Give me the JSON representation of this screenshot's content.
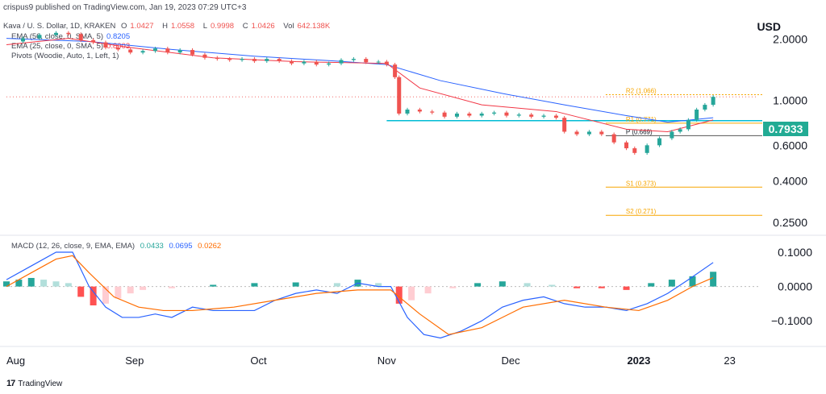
{
  "header": {
    "publisher": "crispus9 published on TradingView.com, Jan 19, 2023 07:29 UTC+3"
  },
  "legend": {
    "symbol": "Kava / U. S. Dollar, 1D, KRAKEN",
    "o_label": "O",
    "o_value": "1.0427",
    "h_label": "H",
    "h_value": "1.0558",
    "l_label": "L",
    "l_value": "0.9998",
    "c_label": "C",
    "c_value": "1.0426",
    "vol_label": "Vol",
    "vol_value": "642.138K",
    "ema50": "EMA (50, close, 0, SMA, 5)",
    "ema50_value": "0.8205",
    "ema25": "EMA (25, close, 0, SMA, 5)",
    "ema25_value": "0.8003",
    "pivots": "Pivots (Woodie, Auto, 1, Left, 1)",
    "macd": "MACD (12, 26, close, 9, EMA, EMA)",
    "macd_hist": "0.0433",
    "macd_line": "0.0695",
    "macd_signal": "0.0262"
  },
  "axis": {
    "currency": "USD",
    "last_price": "0.7933"
  },
  "footer": {
    "brand": "TradingView"
  },
  "colors": {
    "up": "#26a69a",
    "down": "#ef5350",
    "ema50": "#2962ff",
    "ema25": "#f23645",
    "macd": "#2962ff",
    "signal": "#ff6d00",
    "hist_up": "#26a69a",
    "hist_up_light": "#b2dfdb",
    "hist_down": "#ff5252",
    "hist_down_light": "#ffcdd2",
    "pivot": "#f7a600",
    "hline": "#00bcd4"
  },
  "chart_data": [
    {
      "type": "candlestick",
      "title": "Kava / U. S. Dollar, 1D, KRAKEN",
      "scale": "log",
      "y_ticks": [
        2.0,
        1.0,
        0.6,
        0.4,
        0.25
      ],
      "y_tick_labels": [
        "2.0000",
        "1.0000",
        "0.6000",
        "0.4000",
        "0.2500"
      ],
      "x_tick_labels": [
        "Aug",
        "Sep",
        "Oct",
        "Nov",
        "Dec",
        "2023",
        "23"
      ],
      "x_tick_days": [
        0,
        31,
        61,
        92,
        122,
        153,
        175
      ],
      "close_series": [
        {
          "d": 0,
          "v": 1.95
        },
        {
          "d": 4,
          "v": 2.02
        },
        {
          "d": 8,
          "v": 2.1
        },
        {
          "d": 12,
          "v": 2.15
        },
        {
          "d": 15,
          "v": 2.12
        },
        {
          "d": 18,
          "v": 1.98
        },
        {
          "d": 21,
          "v": 1.93
        },
        {
          "d": 24,
          "v": 1.82
        },
        {
          "d": 27,
          "v": 1.78
        },
        {
          "d": 30,
          "v": 1.72
        },
        {
          "d": 33,
          "v": 1.75
        },
        {
          "d": 36,
          "v": 1.8
        },
        {
          "d": 39,
          "v": 1.72
        },
        {
          "d": 42,
          "v": 1.77
        },
        {
          "d": 45,
          "v": 1.68
        },
        {
          "d": 48,
          "v": 1.62
        },
        {
          "d": 51,
          "v": 1.6
        },
        {
          "d": 54,
          "v": 1.58
        },
        {
          "d": 57,
          "v": 1.6
        },
        {
          "d": 60,
          "v": 1.56
        },
        {
          "d": 63,
          "v": 1.6
        },
        {
          "d": 66,
          "v": 1.56
        },
        {
          "d": 69,
          "v": 1.52
        },
        {
          "d": 72,
          "v": 1.55
        },
        {
          "d": 75,
          "v": 1.5
        },
        {
          "d": 78,
          "v": 1.52
        },
        {
          "d": 81,
          "v": 1.58
        },
        {
          "d": 84,
          "v": 1.6
        },
        {
          "d": 87,
          "v": 1.54
        },
        {
          "d": 90,
          "v": 1.55
        },
        {
          "d": 92,
          "v": 1.5
        },
        {
          "d": 94,
          "v": 1.3
        },
        {
          "d": 95,
          "v": 0.86
        },
        {
          "d": 97,
          "v": 0.9
        },
        {
          "d": 100,
          "v": 0.88
        },
        {
          "d": 103,
          "v": 0.87
        },
        {
          "d": 106,
          "v": 0.83
        },
        {
          "d": 109,
          "v": 0.86
        },
        {
          "d": 112,
          "v": 0.84
        },
        {
          "d": 115,
          "v": 0.86
        },
        {
          "d": 118,
          "v": 0.87
        },
        {
          "d": 121,
          "v": 0.84
        },
        {
          "d": 124,
          "v": 0.85
        },
        {
          "d": 127,
          "v": 0.83
        },
        {
          "d": 130,
          "v": 0.84
        },
        {
          "d": 133,
          "v": 0.82
        },
        {
          "d": 135,
          "v": 0.7
        },
        {
          "d": 138,
          "v": 0.68
        },
        {
          "d": 141,
          "v": 0.7
        },
        {
          "d": 144,
          "v": 0.68
        },
        {
          "d": 147,
          "v": 0.62
        },
        {
          "d": 150,
          "v": 0.58
        },
        {
          "d": 152,
          "v": 0.55
        },
        {
          "d": 155,
          "v": 0.6
        },
        {
          "d": 158,
          "v": 0.65
        },
        {
          "d": 161,
          "v": 0.7
        },
        {
          "d": 163,
          "v": 0.72
        },
        {
          "d": 165,
          "v": 0.8
        },
        {
          "d": 167,
          "v": 0.9
        },
        {
          "d": 169,
          "v": 0.95
        },
        {
          "d": 171,
          "v": 1.04
        }
      ],
      "ema50_series": [
        {
          "d": 0,
          "v": 2.02
        },
        {
          "d": 20,
          "v": 1.95
        },
        {
          "d": 40,
          "v": 1.78
        },
        {
          "d": 60,
          "v": 1.65
        },
        {
          "d": 80,
          "v": 1.56
        },
        {
          "d": 92,
          "v": 1.5
        },
        {
          "d": 105,
          "v": 1.25
        },
        {
          "d": 120,
          "v": 1.08
        },
        {
          "d": 135,
          "v": 0.95
        },
        {
          "d": 150,
          "v": 0.84
        },
        {
          "d": 160,
          "v": 0.78
        },
        {
          "d": 171,
          "v": 0.82
        }
      ],
      "ema25_series": [
        {
          "d": 0,
          "v": 1.88
        },
        {
          "d": 15,
          "v": 2.02
        },
        {
          "d": 30,
          "v": 1.82
        },
        {
          "d": 50,
          "v": 1.62
        },
        {
          "d": 70,
          "v": 1.55
        },
        {
          "d": 92,
          "v": 1.52
        },
        {
          "d": 100,
          "v": 1.15
        },
        {
          "d": 115,
          "v": 0.95
        },
        {
          "d": 133,
          "v": 0.88
        },
        {
          "d": 150,
          "v": 0.72
        },
        {
          "d": 160,
          "v": 0.7
        },
        {
          "d": 171,
          "v": 0.8
        }
      ],
      "pivot_levels": [
        {
          "label": "R2 (1.066)",
          "value": 1.066
        },
        {
          "label": "R1 (0.771)",
          "value": 0.771
        },
        {
          "label": "P (0.669)",
          "value": 0.669
        },
        {
          "label": "S1 (0.373)",
          "value": 0.373
        },
        {
          "label": "S2 (0.271)",
          "value": 0.271
        }
      ],
      "support_line": 0.7933
    },
    {
      "type": "line",
      "title": "MACD (12, 26, close, 9, EMA, EMA)",
      "y_ticks": [
        0.1,
        0.0,
        -0.1
      ],
      "y_tick_labels": [
        "0.1000",
        "0.0000",
        "−0.1000"
      ],
      "macd_series": [
        {
          "d": 0,
          "v": 0.02
        },
        {
          "d": 6,
          "v": 0.06
        },
        {
          "d": 12,
          "v": 0.1
        },
        {
          "d": 16,
          "v": 0.1
        },
        {
          "d": 20,
          "v": 0.0
        },
        {
          "d": 24,
          "v": -0.06
        },
        {
          "d": 28,
          "v": -0.09
        },
        {
          "d": 32,
          "v": -0.09
        },
        {
          "d": 36,
          "v": -0.08
        },
        {
          "d": 40,
          "v": -0.09
        },
        {
          "d": 45,
          "v": -0.06
        },
        {
          "d": 50,
          "v": -0.07
        },
        {
          "d": 55,
          "v": -0.07
        },
        {
          "d": 60,
          "v": -0.07
        },
        {
          "d": 65,
          "v": -0.04
        },
        {
          "d": 70,
          "v": -0.02
        },
        {
          "d": 75,
          "v": -0.01
        },
        {
          "d": 80,
          "v": -0.02
        },
        {
          "d": 85,
          "v": 0.01
        },
        {
          "d": 90,
          "v": 0.0
        },
        {
          "d": 93,
          "v": 0.0
        },
        {
          "d": 97,
          "v": -0.09
        },
        {
          "d": 101,
          "v": -0.14
        },
        {
          "d": 105,
          "v": -0.15
        },
        {
          "d": 110,
          "v": -0.13
        },
        {
          "d": 115,
          "v": -0.1
        },
        {
          "d": 120,
          "v": -0.06
        },
        {
          "d": 125,
          "v": -0.04
        },
        {
          "d": 130,
          "v": -0.03
        },
        {
          "d": 135,
          "v": -0.05
        },
        {
          "d": 140,
          "v": -0.06
        },
        {
          "d": 145,
          "v": -0.06
        },
        {
          "d": 150,
          "v": -0.07
        },
        {
          "d": 155,
          "v": -0.05
        },
        {
          "d": 160,
          "v": -0.02
        },
        {
          "d": 165,
          "v": 0.02
        },
        {
          "d": 171,
          "v": 0.07
        }
      ],
      "signal_series": [
        {
          "d": 0,
          "v": 0.0
        },
        {
          "d": 6,
          "v": 0.04
        },
        {
          "d": 12,
          "v": 0.08
        },
        {
          "d": 16,
          "v": 0.09
        },
        {
          "d": 20,
          "v": 0.04
        },
        {
          "d": 26,
          "v": -0.03
        },
        {
          "d": 32,
          "v": -0.06
        },
        {
          "d": 38,
          "v": -0.07
        },
        {
          "d": 45,
          "v": -0.07
        },
        {
          "d": 55,
          "v": -0.06
        },
        {
          "d": 65,
          "v": -0.04
        },
        {
          "d": 75,
          "v": -0.02
        },
        {
          "d": 85,
          "v": -0.01
        },
        {
          "d": 93,
          "v": -0.01
        },
        {
          "d": 100,
          "v": -0.08
        },
        {
          "d": 107,
          "v": -0.14
        },
        {
          "d": 115,
          "v": -0.12
        },
        {
          "d": 125,
          "v": -0.06
        },
        {
          "d": 135,
          "v": -0.04
        },
        {
          "d": 145,
          "v": -0.06
        },
        {
          "d": 153,
          "v": -0.07
        },
        {
          "d": 160,
          "v": -0.04
        },
        {
          "d": 166,
          "v": 0.0
        },
        {
          "d": 171,
          "v": 0.026
        }
      ],
      "histogram": [
        {
          "d": 0,
          "v": 0.015
        },
        {
          "d": 3,
          "v": 0.02
        },
        {
          "d": 6,
          "v": 0.025
        },
        {
          "d": 9,
          "v": 0.02
        },
        {
          "d": 12,
          "v": 0.015
        },
        {
          "d": 15,
          "v": 0.01
        },
        {
          "d": 18,
          "v": -0.03
        },
        {
          "d": 21,
          "v": -0.055
        },
        {
          "d": 24,
          "v": -0.05
        },
        {
          "d": 27,
          "v": -0.035
        },
        {
          "d": 30,
          "v": -0.02
        },
        {
          "d": 33,
          "v": -0.01
        },
        {
          "d": 40,
          "v": -0.005
        },
        {
          "d": 50,
          "v": 0.005
        },
        {
          "d": 60,
          "v": 0.01
        },
        {
          "d": 70,
          "v": 0.012
        },
        {
          "d": 80,
          "v": 0.01
        },
        {
          "d": 85,
          "v": 0.02
        },
        {
          "d": 90,
          "v": 0.01
        },
        {
          "d": 95,
          "v": -0.05
        },
        {
          "d": 98,
          "v": -0.04
        },
        {
          "d": 102,
          "v": -0.02
        },
        {
          "d": 108,
          "v": -0.005
        },
        {
          "d": 114,
          "v": 0.01
        },
        {
          "d": 120,
          "v": 0.015
        },
        {
          "d": 126,
          "v": 0.01
        },
        {
          "d": 132,
          "v": 0.005
        },
        {
          "d": 138,
          "v": -0.005
        },
        {
          "d": 144,
          "v": -0.005
        },
        {
          "d": 150,
          "v": -0.01
        },
        {
          "d": 156,
          "v": 0.01
        },
        {
          "d": 161,
          "v": 0.02
        },
        {
          "d": 166,
          "v": 0.03
        },
        {
          "d": 171,
          "v": 0.043
        }
      ]
    }
  ]
}
